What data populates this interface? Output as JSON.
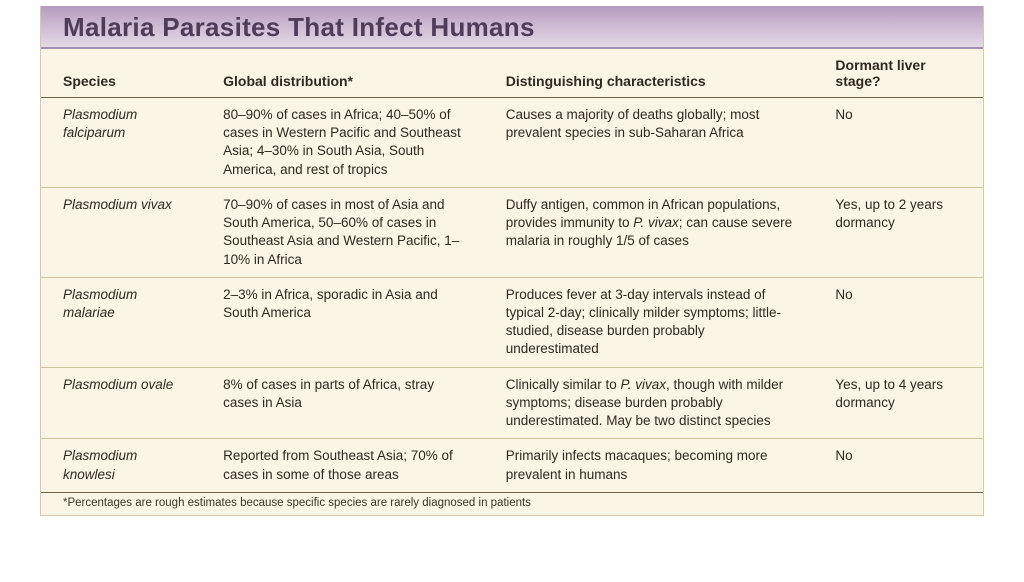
{
  "title": "Malaria Parasites That Infect Humans",
  "colors": {
    "page_bg": "#ffffff",
    "panel_bg": "#faf5e4",
    "header_gradient_top": "#b49bbd",
    "header_gradient_mid": "#c9b6d0",
    "header_gradient_bot": "#e3d9e6",
    "header_text": "#4f3c58",
    "rule_heavy": "#6d6146",
    "rule_light": "#cfc29d",
    "text": "#2e2a1f"
  },
  "typography": {
    "title_fontsize_pt": 20,
    "header_fontsize_pt": 11,
    "body_fontsize_pt": 10,
    "footnote_fontsize_pt": 8.5,
    "title_weight": 700,
    "header_weight": 700
  },
  "table": {
    "type": "table",
    "column_widths_pct": [
      17,
      30,
      35,
      18
    ],
    "columns": [
      "Species",
      "Global distribution*",
      "Distinguishing characteristics",
      "Dormant liver stage?"
    ],
    "rows": [
      {
        "species": "Plasmodium falciparum",
        "distribution": "80–90% of cases in Africa; 40–50% of cases in Western Pacific and Southeast Asia; 4–30% in South Asia, South America, and rest of tropics",
        "characteristics": "Causes a majority of deaths globally; most prevalent species in sub-Saharan Africa",
        "characteristics_italic": "",
        "characteristics_tail": "",
        "dormant": "No"
      },
      {
        "species": "Plasmodium vivax",
        "distribution": "70–90% of cases in most of Asia and South America, 50–60% of cases in Southeast Asia and Western Pacific, 1–10% in Africa",
        "characteristics": "Duffy antigen, common in African populations, provides immunity to ",
        "characteristics_italic": "P. vivax",
        "characteristics_tail": "; can cause severe malaria in roughly 1/5 of cases",
        "dormant": "Yes, up to 2 years dormancy"
      },
      {
        "species": "Plasmodium malariae",
        "distribution": "2–3% in Africa, sporadic in Asia and South America",
        "characteristics": "Produces fever at 3-day intervals instead of typical 2-day; clinically milder symptoms; little-studied, disease burden probably underestimated",
        "characteristics_italic": "",
        "characteristics_tail": "",
        "dormant": "No"
      },
      {
        "species": "Plasmodium ovale",
        "distribution": "8% of cases in parts of Africa, stray cases in Asia",
        "characteristics": "Clinically similar to ",
        "characteristics_italic": "P. vivax",
        "characteristics_tail": ", though with milder symptoms; disease burden probably underestimated. May be two distinct species",
        "dormant": "Yes, up to 4 years dormancy"
      },
      {
        "species": "Plasmodium knowlesi",
        "distribution": "Reported from Southeast Asia; 70% of cases in some of those areas",
        "characteristics": "Primarily infects macaques; becoming more prevalent in humans",
        "characteristics_italic": "",
        "characteristics_tail": "",
        "dormant": "No"
      }
    ]
  },
  "footnote": "*Percentages are rough estimates because specific species are rarely diagnosed in patients"
}
